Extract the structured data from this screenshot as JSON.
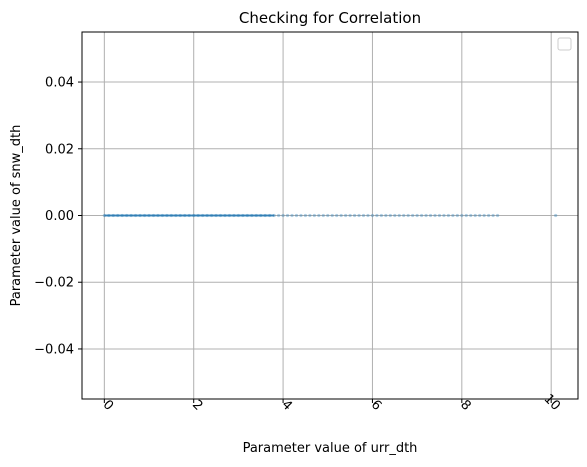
{
  "chart_data": {
    "type": "scatter",
    "title": "Checking for Correlation",
    "xlabel": "Parameter value of urr_dth",
    "ylabel": "Parameter value of snw_dth",
    "xlim": [
      -0.5,
      10.6
    ],
    "ylim": [
      -0.055,
      0.055
    ],
    "xticks": [
      0,
      2,
      4,
      6,
      8,
      10
    ],
    "xtick_labels": [
      "0",
      "2",
      "4",
      "6",
      "8",
      "10"
    ],
    "xtick_rotation_deg": 45,
    "yticks": [
      -0.04,
      -0.02,
      0.0,
      0.02,
      0.04
    ],
    "ytick_labels": [
      "−0.04",
      "−0.02",
      "0.00",
      "0.02",
      "0.04"
    ],
    "grid": true,
    "legend": {
      "placement": "upper-right",
      "entries": []
    },
    "series": [
      {
        "color": "#1f77b4",
        "alpha": 0.35,
        "x": [
          0.0,
          0.1,
          0.2,
          0.3,
          0.4,
          0.5,
          0.6,
          0.7,
          0.8,
          0.9,
          1.0,
          1.1,
          1.2,
          1.3,
          1.4,
          1.5,
          1.6,
          1.7,
          1.8,
          1.9,
          2.0,
          2.1,
          2.2,
          2.3,
          2.4,
          2.5,
          2.6,
          2.7,
          2.8,
          2.9,
          3.0,
          3.1,
          3.2,
          3.3,
          3.4,
          3.5,
          3.6,
          3.7,
          3.8,
          3.9,
          4.0,
          4.1,
          4.2,
          4.3,
          4.4,
          4.5,
          4.6,
          4.7,
          4.8,
          4.9,
          5.0,
          5.1,
          5.2,
          5.3,
          5.4,
          5.5,
          5.6,
          5.7,
          5.8,
          5.9,
          6.0,
          6.1,
          6.2,
          6.3,
          6.4,
          6.5,
          6.6,
          6.7,
          6.8,
          6.9,
          7.0,
          7.1,
          7.2,
          7.3,
          7.4,
          7.5,
          7.6,
          7.7,
          7.8,
          7.9,
          8.0,
          8.1,
          8.2,
          8.3,
          8.4,
          8.5,
          8.6,
          8.7,
          8.8,
          10.1
        ],
        "y": [
          0,
          0,
          0,
          0,
          0,
          0,
          0,
          0,
          0,
          0,
          0,
          0,
          0,
          0,
          0,
          0,
          0,
          0,
          0,
          0,
          0,
          0,
          0,
          0,
          0,
          0,
          0,
          0,
          0,
          0,
          0,
          0,
          0,
          0,
          0,
          0,
          0,
          0,
          0,
          0,
          0,
          0,
          0,
          0,
          0,
          0,
          0,
          0,
          0,
          0,
          0,
          0,
          0,
          0,
          0,
          0,
          0,
          0,
          0,
          0,
          0,
          0,
          0,
          0,
          0,
          0,
          0,
          0,
          0,
          0,
          0,
          0,
          0,
          0,
          0,
          0,
          0,
          0,
          0,
          0,
          0,
          0,
          0,
          0,
          0,
          0,
          0,
          0,
          0,
          0
        ]
      }
    ]
  }
}
